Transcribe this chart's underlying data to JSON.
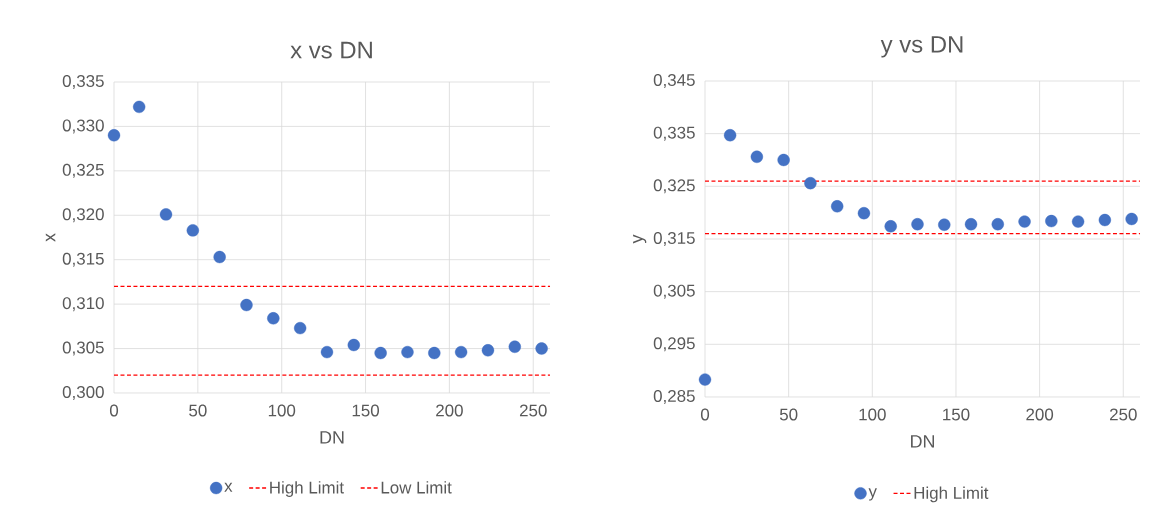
{
  "chart_data": [
    {
      "type": "scatter",
      "title": "x vs DN",
      "xlabel": "DN",
      "ylabel": "x",
      "marker": "circle",
      "grid": true,
      "legend": "bottom",
      "x": [
        0,
        15,
        31,
        47,
        63,
        79,
        95,
        111,
        127,
        143,
        159,
        175,
        191,
        207,
        223,
        239,
        255
      ],
      "series": [
        {
          "name": "x",
          "color": "#4472c4",
          "values": [
            0.329,
            0.3322,
            0.3201,
            0.3183,
            0.3153,
            0.3099,
            0.3084,
            0.3073,
            0.3046,
            0.3054,
            0.3045,
            0.3046,
            0.3045,
            0.3046,
            0.3048,
            0.3052,
            0.305
          ]
        }
      ],
      "xlim": [
        0,
        260
      ],
      "xticks": [
        0,
        50,
        100,
        150,
        200,
        250
      ],
      "ylim": [
        0.3,
        0.335
      ],
      "yticks": [
        {
          "value": 0.3,
          "label": "0,300"
        },
        {
          "value": 0.305,
          "label": "0,305"
        },
        {
          "value": 0.31,
          "label": "0,310"
        },
        {
          "value": 0.315,
          "label": "0,315"
        },
        {
          "value": 0.32,
          "label": "0,320"
        },
        {
          "value": 0.325,
          "label": "0,325"
        },
        {
          "value": 0.33,
          "label": "0,330"
        },
        {
          "value": 0.335,
          "label": "0,335"
        }
      ],
      "ref_lines": [
        {
          "axis": "y",
          "value": 0.312,
          "label": "High Limit",
          "color": "#ff0000",
          "line_style": "dashed"
        },
        {
          "axis": "y",
          "value": 0.302,
          "label": "Low Limit",
          "color": "#ff0000",
          "line_style": "dashed"
        }
      ]
    },
    {
      "type": "scatter",
      "title": "y vs DN",
      "xlabel": "DN",
      "ylabel": "y",
      "marker": "circle",
      "grid": true,
      "legend": "bottom",
      "x": [
        0,
        15,
        31,
        47,
        63,
        79,
        95,
        111,
        127,
        143,
        159,
        175,
        191,
        207,
        223,
        239,
        255
      ],
      "series": [
        {
          "name": "y",
          "color": "#4472c4",
          "values": [
            0.2883,
            0.3347,
            0.3306,
            0.33,
            0.3256,
            0.3212,
            0.3199,
            0.3174,
            0.3178,
            0.3177,
            0.3178,
            0.3178,
            0.3183,
            0.3184,
            0.3183,
            0.3186,
            0.3188
          ]
        }
      ],
      "xlim": [
        0,
        260
      ],
      "xticks": [
        0,
        50,
        100,
        150,
        200,
        250
      ],
      "ylim": [
        0.285,
        0.345
      ],
      "yticks": [
        {
          "value": 0.285,
          "label": "0,285"
        },
        {
          "value": 0.295,
          "label": "0,295"
        },
        {
          "value": 0.305,
          "label": "0,305"
        },
        {
          "value": 0.315,
          "label": "0,315"
        },
        {
          "value": 0.325,
          "label": "0,325"
        },
        {
          "value": 0.335,
          "label": "0,335"
        },
        {
          "value": 0.345,
          "label": "0,345"
        }
      ],
      "ref_lines": [
        {
          "axis": "y",
          "value": 0.326,
          "label": "High Limit",
          "color": "#ff0000",
          "line_style": "dashed"
        },
        {
          "axis": "y",
          "value": 0.316,
          "label": null,
          "color": "#ff0000",
          "line_style": "dashed"
        }
      ]
    }
  ]
}
